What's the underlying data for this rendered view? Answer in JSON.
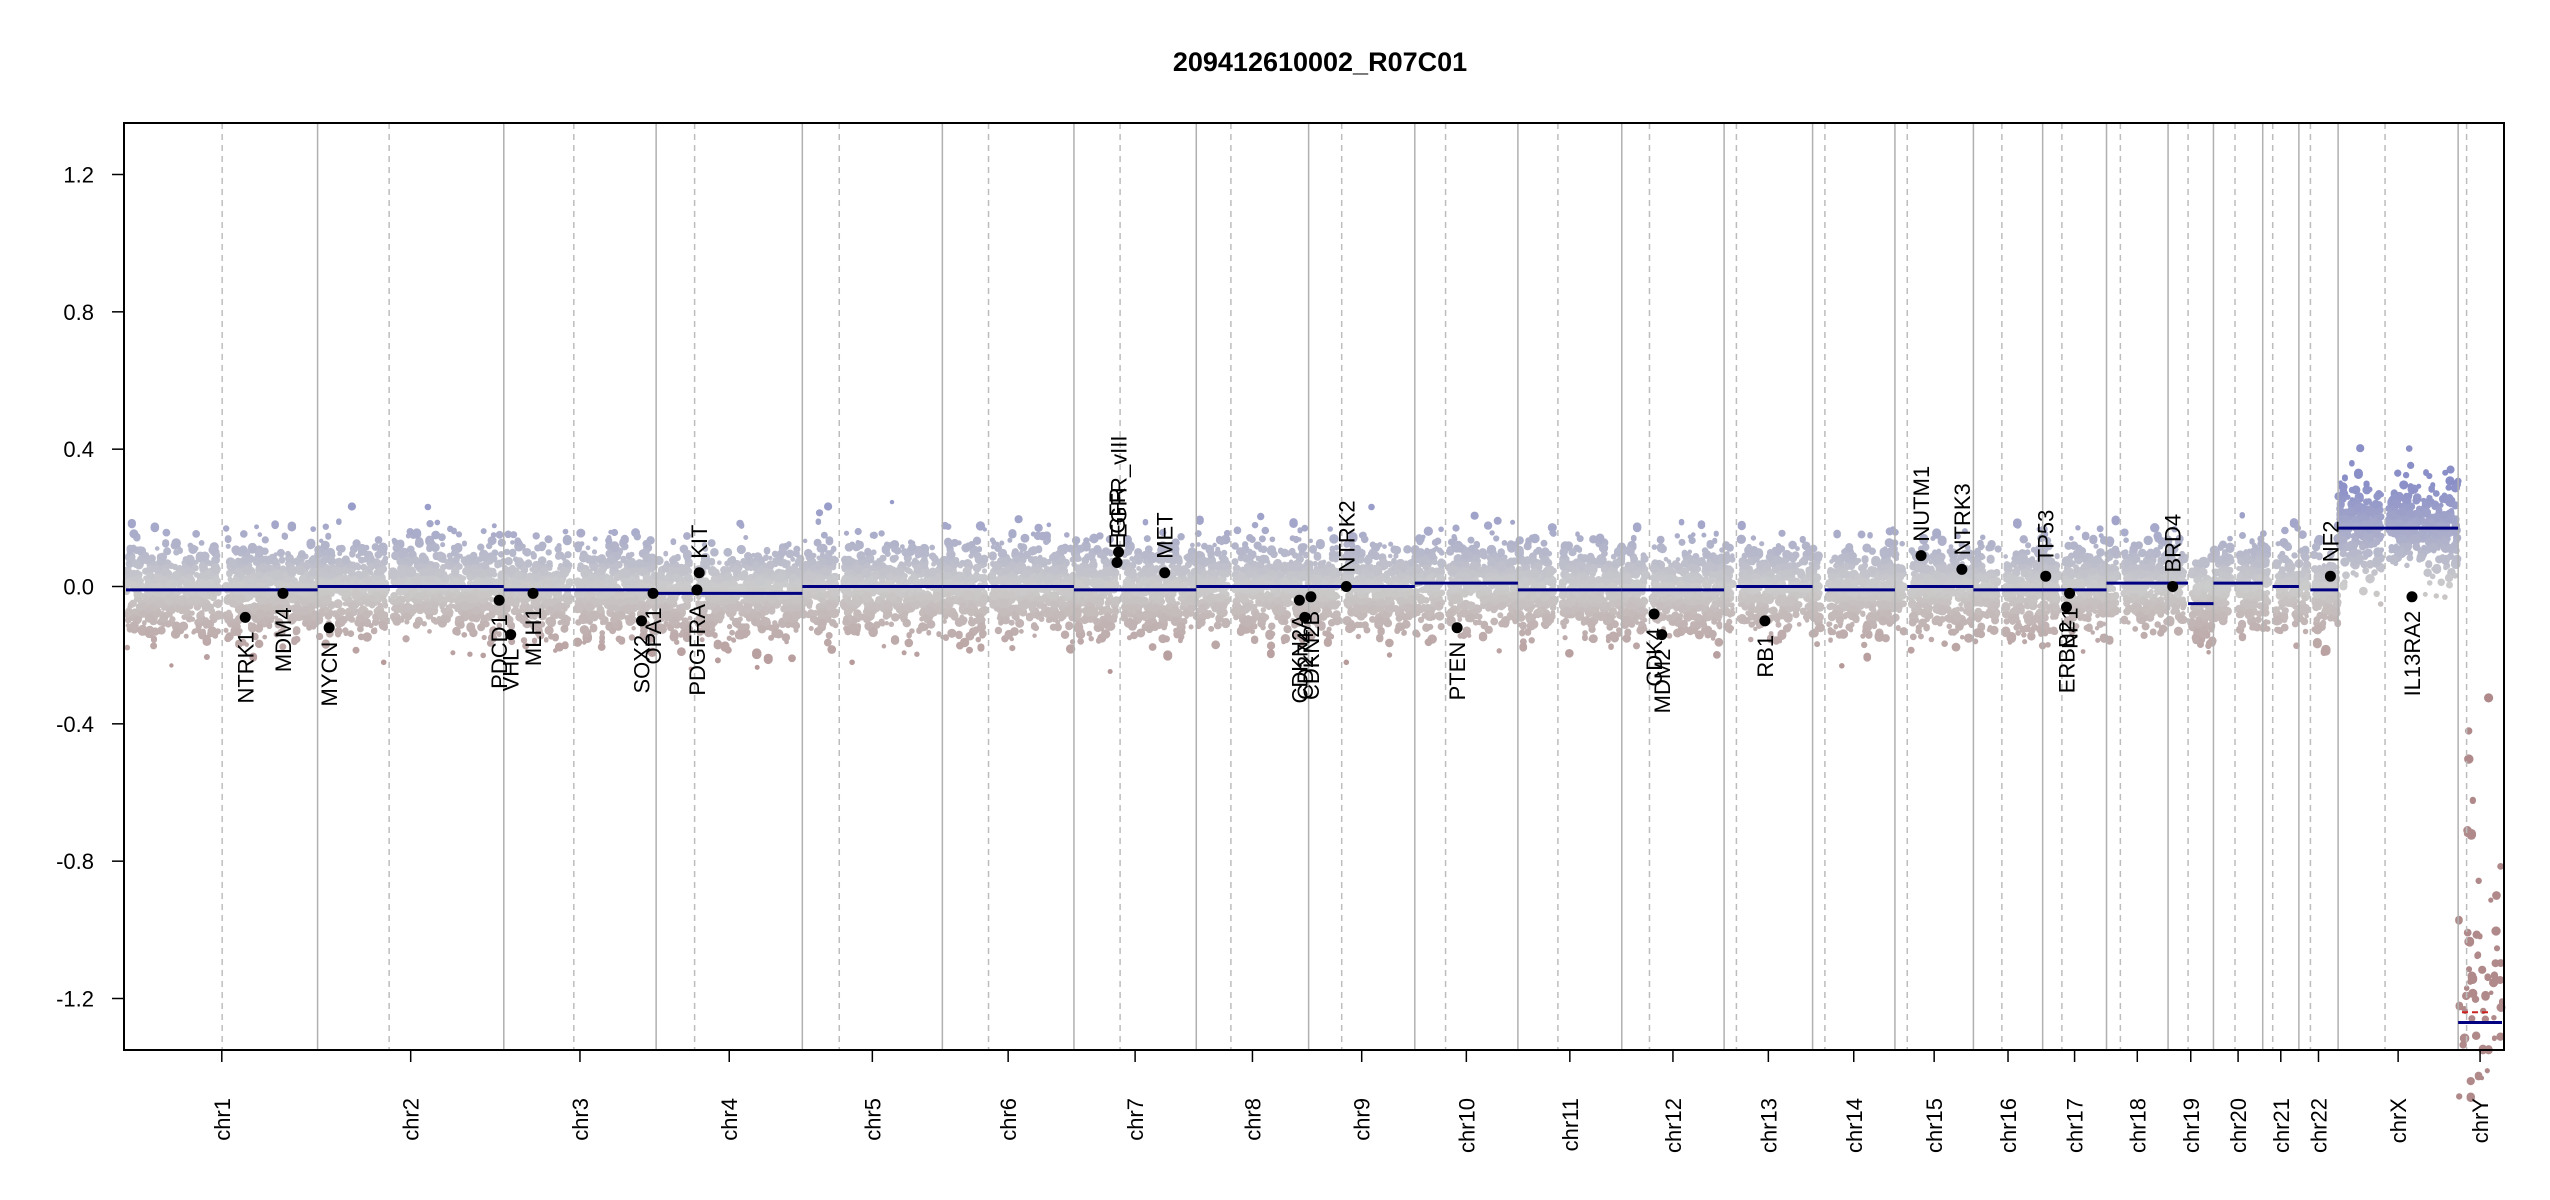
{
  "chart_data": {
    "type": "scatter",
    "title": "209412610002_R07C01",
    "xlabel": "",
    "ylabel": "",
    "ylim": [
      -1.35,
      1.35
    ],
    "y_ticks": [
      {
        "value": -1.2,
        "label": "-1.2"
      },
      {
        "value": -0.8,
        "label": "-0.8"
      },
      {
        "value": -0.4,
        "label": "-0.4"
      },
      {
        "value": 0.0,
        "label": "0.0"
      },
      {
        "value": 0.4,
        "label": "0.4"
      },
      {
        "value": 0.8,
        "label": "0.8"
      },
      {
        "value": 1.2,
        "label": "1.2"
      }
    ],
    "grid": false,
    "colors": {
      "gain": "#8a8fc8",
      "loss": "#b08a8a",
      "neutral": "#cccccc",
      "segment": "#000080",
      "gene_point": "#000000",
      "chr_divider": "#b0b0b0",
      "centromere": "#bdbdbd"
    },
    "chromosomes": [
      {
        "name": "chr1",
        "start": 0,
        "end": 2.49,
        "centromere": 1.25,
        "segments": [
          {
            "start": 0,
            "end": 2.49,
            "value": -0.01
          }
        ]
      },
      {
        "name": "chr2",
        "start": 2.49,
        "end": 4.91,
        "centromere": 3.42,
        "segments": [
          {
            "start": 2.49,
            "end": 4.91,
            "value": 0.0
          }
        ]
      },
      {
        "name": "chr3",
        "start": 4.91,
        "end": 6.89,
        "centromere": 5.82,
        "segments": [
          {
            "start": 4.91,
            "end": 6.89,
            "value": -0.01
          }
        ]
      },
      {
        "name": "chr4",
        "start": 6.89,
        "end": 8.79,
        "centromere": 7.39,
        "segments": [
          {
            "start": 6.89,
            "end": 8.79,
            "value": -0.02
          }
        ]
      },
      {
        "name": "chr5",
        "start": 8.79,
        "end": 10.61,
        "centromere": 9.27,
        "segments": [
          {
            "start": 8.79,
            "end": 10.61,
            "value": 0.0
          }
        ]
      },
      {
        "name": "chr6",
        "start": 10.61,
        "end": 12.32,
        "centromere": 11.21,
        "segments": [
          {
            "start": 10.61,
            "end": 12.32,
            "value": 0.0
          }
        ]
      },
      {
        "name": "chr7",
        "start": 12.32,
        "end": 13.91,
        "centromere": 12.92,
        "segments": [
          {
            "start": 12.32,
            "end": 13.91,
            "value": -0.01
          }
        ]
      },
      {
        "name": "chr8",
        "start": 13.91,
        "end": 15.37,
        "centromere": 14.36,
        "segments": [
          {
            "start": 13.91,
            "end": 15.37,
            "value": 0.0
          }
        ]
      },
      {
        "name": "chr9",
        "start": 15.37,
        "end": 16.75,
        "centromere": 15.8,
        "segments": [
          {
            "start": 15.37,
            "end": 16.75,
            "value": 0.0
          }
        ]
      },
      {
        "name": "chr10",
        "start": 16.75,
        "end": 18.09,
        "centromere": 17.15,
        "segments": [
          {
            "start": 16.75,
            "end": 18.09,
            "value": 0.01
          }
        ]
      },
      {
        "name": "chr11",
        "start": 18.09,
        "end": 19.44,
        "centromere": 18.61,
        "segments": [
          {
            "start": 18.09,
            "end": 19.44,
            "value": -0.01
          }
        ]
      },
      {
        "name": "chr12",
        "start": 19.44,
        "end": 20.77,
        "centromere": 19.8,
        "segments": [
          {
            "start": 19.44,
            "end": 20.77,
            "value": -0.01
          }
        ]
      },
      {
        "name": "chr13",
        "start": 20.77,
        "end": 21.92,
        "centromere": 20.93,
        "segments": [
          {
            "start": 20.93,
            "end": 21.92,
            "value": 0.0
          }
        ]
      },
      {
        "name": "chr14",
        "start": 21.92,
        "end": 22.99,
        "centromere": 22.08,
        "segments": [
          {
            "start": 22.08,
            "end": 22.99,
            "value": -0.01
          }
        ]
      },
      {
        "name": "chr15",
        "start": 22.99,
        "end": 24.01,
        "centromere": 23.15,
        "segments": [
          {
            "start": 23.15,
            "end": 24.01,
            "value": 0.0
          }
        ]
      },
      {
        "name": "chr16",
        "start": 24.01,
        "end": 24.91,
        "centromere": 24.38,
        "segments": [
          {
            "start": 24.01,
            "end": 24.91,
            "value": -0.01
          }
        ]
      },
      {
        "name": "chr17",
        "start": 24.91,
        "end": 25.74,
        "centromere": 25.16,
        "segments": [
          {
            "start": 24.91,
            "end": 25.74,
            "value": -0.01
          }
        ]
      },
      {
        "name": "chr18",
        "start": 25.74,
        "end": 26.54,
        "centromere": 25.92,
        "segments": [
          {
            "start": 25.74,
            "end": 26.54,
            "value": 0.01
          }
        ]
      },
      {
        "name": "chr19",
        "start": 26.54,
        "end": 27.13,
        "centromere": 26.8,
        "segments": [
          {
            "start": 26.54,
            "end": 26.8,
            "value": 0.01
          },
          {
            "start": 26.8,
            "end": 27.13,
            "value": -0.05
          }
        ]
      },
      {
        "name": "chr20",
        "start": 27.13,
        "end": 27.77,
        "centromere": 27.41,
        "segments": [
          {
            "start": 27.13,
            "end": 27.77,
            "value": 0.01
          }
        ]
      },
      {
        "name": "chr21",
        "start": 27.77,
        "end": 28.24,
        "centromere": 27.9,
        "segments": [
          {
            "start": 27.9,
            "end": 28.24,
            "value": 0.0
          }
        ]
      },
      {
        "name": "chr22",
        "start": 28.24,
        "end": 28.75,
        "centromere": 28.39,
        "segments": [
          {
            "start": 28.39,
            "end": 28.75,
            "value": -0.01
          }
        ]
      },
      {
        "name": "chrX",
        "start": 28.75,
        "end": 30.31,
        "centromere": 29.36,
        "segments": [
          {
            "start": 28.75,
            "end": 30.31,
            "value": 0.17
          }
        ]
      },
      {
        "name": "chrY",
        "start": 30.31,
        "end": 30.88,
        "centromere": 30.42,
        "segments": [
          {
            "start": 30.31,
            "end": 30.88,
            "value": -1.27
          }
        ]
      }
    ],
    "genes": [
      {
        "name": "NTRK1",
        "x": 1.55,
        "y": -0.09,
        "label_side": "below"
      },
      {
        "name": "MDM4",
        "x": 2.04,
        "y": -0.02,
        "label_side": "below"
      },
      {
        "name": "MYCN",
        "x": 2.64,
        "y": -0.12,
        "label_side": "below"
      },
      {
        "name": "PDCD1",
        "x": 4.85,
        "y": -0.04,
        "label_side": "below"
      },
      {
        "name": "VHL",
        "x": 5.0,
        "y": -0.14,
        "label_side": "below"
      },
      {
        "name": "MLH1",
        "x": 5.29,
        "y": -0.02,
        "label_side": "below"
      },
      {
        "name": "SOX2",
        "x": 6.7,
        "y": -0.1,
        "label_side": "below"
      },
      {
        "name": "OPA1",
        "x": 6.85,
        "y": -0.02,
        "label_side": "below"
      },
      {
        "name": "PDGFRA",
        "x": 7.42,
        "y": -0.01,
        "label_side": "below"
      },
      {
        "name": "KIT",
        "x": 7.45,
        "y": 0.04,
        "label_side": "above"
      },
      {
        "name": "EGFR",
        "x": 12.88,
        "y": 0.07,
        "label_side": "above"
      },
      {
        "name": "EGFR_vIII",
        "x": 12.9,
        "y": 0.1,
        "label_side": "above"
      },
      {
        "name": "MET",
        "x": 13.5,
        "y": 0.04,
        "label_side": "above"
      },
      {
        "name": "CDKN2A",
        "x": 15.25,
        "y": -0.04,
        "label_side": "below"
      },
      {
        "name": "CD274",
        "x": 15.32,
        "y": -0.09,
        "label_side": "below"
      },
      {
        "name": "CDKN2B",
        "x": 15.4,
        "y": -0.03,
        "label_side": "below"
      },
      {
        "name": "NTRK2",
        "x": 15.86,
        "y": 0.0,
        "label_side": "above"
      },
      {
        "name": "PTEN",
        "x": 17.3,
        "y": -0.12,
        "label_side": "below"
      },
      {
        "name": "CDK4",
        "x": 19.86,
        "y": -0.08,
        "label_side": "below"
      },
      {
        "name": "MDM2",
        "x": 19.96,
        "y": -0.14,
        "label_side": "below"
      },
      {
        "name": "RB1",
        "x": 21.3,
        "y": -0.1,
        "label_side": "below"
      },
      {
        "name": "NUTM1",
        "x": 23.33,
        "y": 0.09,
        "label_side": "above"
      },
      {
        "name": "NTRK3",
        "x": 23.86,
        "y": 0.05,
        "label_side": "above"
      },
      {
        "name": "TP53",
        "x": 24.95,
        "y": 0.03,
        "label_side": "above"
      },
      {
        "name": "NF1",
        "x": 25.26,
        "y": -0.02,
        "label_side": "below"
      },
      {
        "name": "ERBB2",
        "x": 25.22,
        "y": -0.06,
        "label_side": "below"
      },
      {
        "name": "BRD4",
        "x": 26.6,
        "y": 0.0,
        "label_side": "above"
      },
      {
        "name": "NF2",
        "x": 28.65,
        "y": 0.03,
        "label_side": "above"
      },
      {
        "name": "IL13RA2",
        "x": 29.71,
        "y": -0.03,
        "label_side": "below"
      }
    ]
  }
}
